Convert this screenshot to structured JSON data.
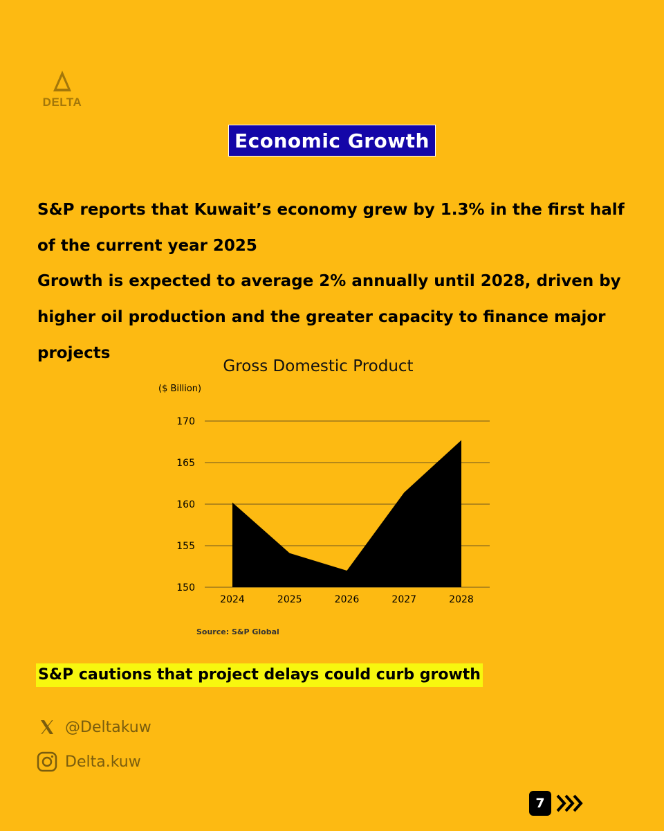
{
  "brand": {
    "name": "DELTA"
  },
  "header": {
    "title": "Economic Growth"
  },
  "paragraphs": [
    "S&P reports that Kuwait’s economy grew by 1.3% in the first half of the current year 2025",
    "Growth is expected to average 2% annually until 2028, driven by higher oil production and the greater capacity to finance major projects"
  ],
  "chart_data": {
    "type": "area",
    "title": "Gross Domestic Product",
    "ylabel": "($ Billion)",
    "xlabel": "",
    "categories": [
      "2024",
      "2025",
      "2026",
      "2027",
      "2028"
    ],
    "values": [
      160.2,
      154.1,
      152.0,
      161.4,
      167.7
    ],
    "ylim": [
      150,
      170
    ],
    "yticks": [
      150,
      155,
      160,
      165,
      170
    ],
    "grid": true,
    "fill_color": "#000000",
    "source": "Source: S&P Global"
  },
  "callout": "S&P cautions that project delays could curb growth",
  "social": {
    "x_handle": "@Deltakuw",
    "instagram_handle": "Delta.kuw"
  },
  "page": {
    "number": "7"
  },
  "colors": {
    "background": "#FDBA12",
    "title_bg": "#1406A8",
    "highlight": "#F7F70F"
  }
}
